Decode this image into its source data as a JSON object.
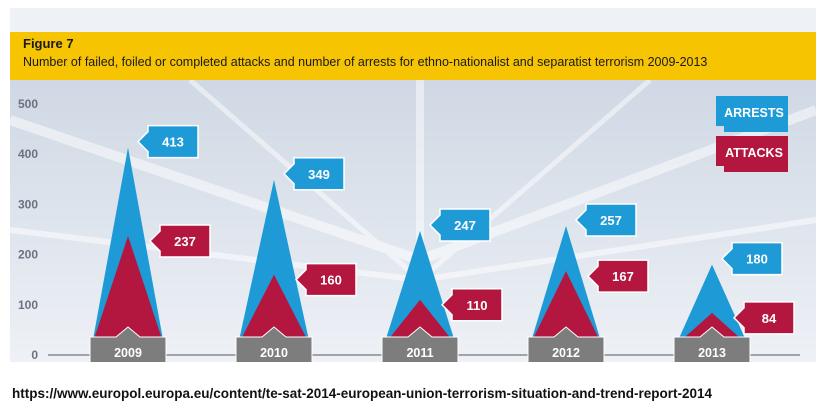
{
  "figure_label": "Figure 7",
  "title": "Number of failed, foiled or completed attacks and number of arrests for ethno-nationalist and separatist terrorism 2009-2013",
  "source": "https://www.europol.europa.eu/content/te-sat-2014-european-union-terrorism-situation-and-trend-report-2014",
  "colors": {
    "arrests": "#1e9bd7",
    "attacks": "#b3173f",
    "year_box": "#7d7d7d",
    "banner": "#f6c400"
  },
  "chart_data": {
    "type": "area",
    "categories": [
      "2009",
      "2010",
      "2011",
      "2012",
      "2013"
    ],
    "series": [
      {
        "name": "ARRESTS",
        "values": [
          413,
          349,
          247,
          257,
          180
        ]
      },
      {
        "name": "ATTACKS",
        "values": [
          237,
          160,
          110,
          167,
          84
        ]
      }
    ],
    "yticks": [
      0,
      100,
      200,
      300,
      400,
      500
    ],
    "ylim": [
      0,
      500
    ],
    "legend": "top-right",
    "grid": false
  }
}
